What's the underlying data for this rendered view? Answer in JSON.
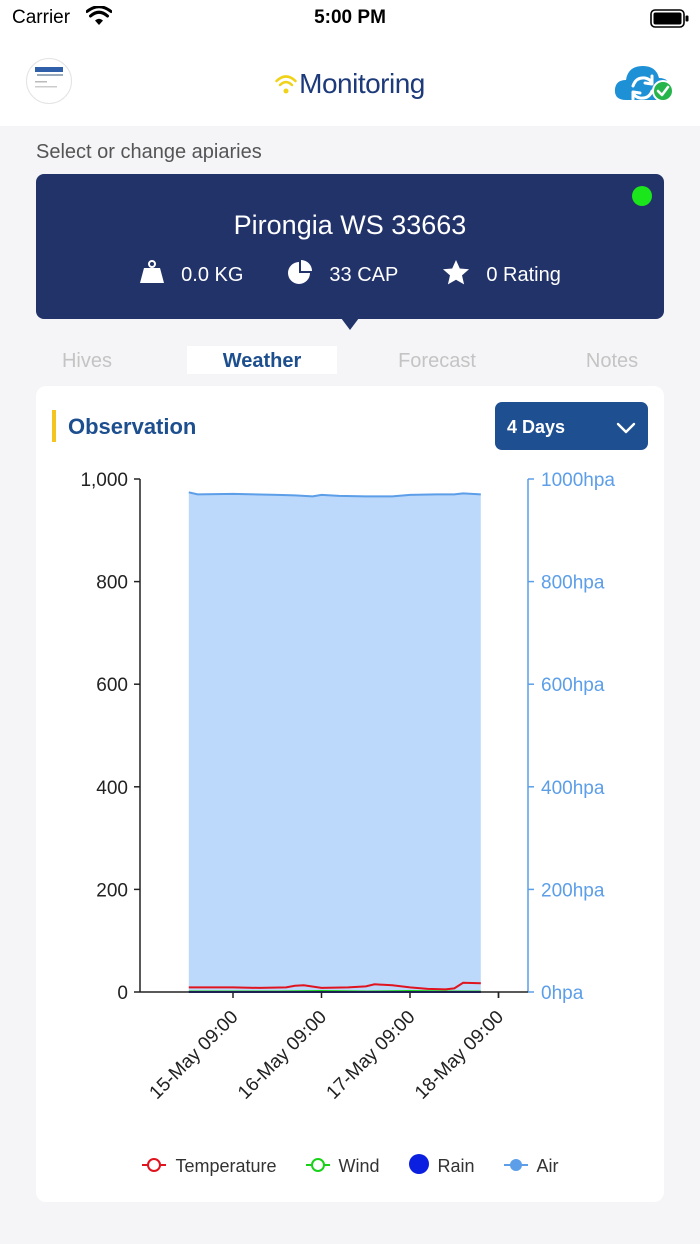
{
  "status": {
    "carrier": "Carrier",
    "time": "5:00 PM"
  },
  "nav": {
    "title": "Monitoring",
    "sync_icon": "cloud-sync-check-icon"
  },
  "apiary": {
    "select_label": "Select or change apiaries",
    "name": "Pirongia WS 33663",
    "online_color": "#1be51b",
    "weight": "0.0 KG",
    "capacity": "33 CAP",
    "rating": "0 Rating"
  },
  "tabs": [
    {
      "label": "Hives",
      "active": false
    },
    {
      "label": "Weather",
      "active": true
    },
    {
      "label": "Forecast",
      "active": false
    },
    {
      "label": "Notes",
      "active": false
    }
  ],
  "observation": {
    "title": "Observation",
    "range_select": "4 Days"
  },
  "chart_data": {
    "type": "area",
    "x_ticks": [
      "15-May 09:00",
      "16-May 09:00",
      "17-May 09:00",
      "18-May 09:00"
    ],
    "y_left": {
      "ticks": [
        "0",
        "200",
        "400",
        "600",
        "800",
        "1,000"
      ],
      "range": [
        0,
        1000
      ]
    },
    "y_right": {
      "ticks": [
        "0hpa",
        "200hpa",
        "400hpa",
        "600hpa",
        "800hpa",
        "1000hpa"
      ],
      "range": [
        0,
        1000
      ]
    },
    "x_range_days": [
      -0.5,
      2.8
    ],
    "series": [
      {
        "name": "Temperature",
        "color": "#e0141e",
        "type": "line",
        "x": [
          -0.5,
          0.0,
          0.3,
          0.6,
          0.7,
          0.8,
          1.0,
          1.3,
          1.5,
          1.6,
          1.8,
          2.0,
          2.2,
          2.4,
          2.5,
          2.6,
          2.8
        ],
        "y": [
          9,
          9,
          8,
          9,
          12,
          13,
          8,
          9,
          11,
          15,
          13,
          9,
          6,
          5,
          7,
          18,
          17
        ]
      },
      {
        "name": "Wind",
        "color": "#1ad11a",
        "type": "line",
        "x": [
          -0.5,
          0.5,
          1.0,
          1.5,
          2.0,
          2.5,
          2.8
        ],
        "y": [
          1,
          1,
          2,
          1,
          2,
          1,
          1
        ]
      },
      {
        "name": "Rain",
        "color": "#0a1fe0",
        "type": "line",
        "x": [
          -0.5,
          2.8
        ],
        "y": [
          0,
          0
        ]
      },
      {
        "name": "Air",
        "color": "#5c9ee8",
        "fill": "#bcd8fb",
        "type": "area",
        "x": [
          -0.5,
          -0.4,
          0.0,
          0.5,
          0.7,
          0.9,
          1.0,
          1.2,
          1.5,
          1.8,
          2.0,
          2.3,
          2.5,
          2.6,
          2.8
        ],
        "y": [
          974,
          970,
          971,
          969,
          968,
          966,
          969,
          967,
          966,
          966,
          969,
          970,
          970,
          972,
          970
        ]
      }
    ],
    "legend_position": "bottom"
  }
}
